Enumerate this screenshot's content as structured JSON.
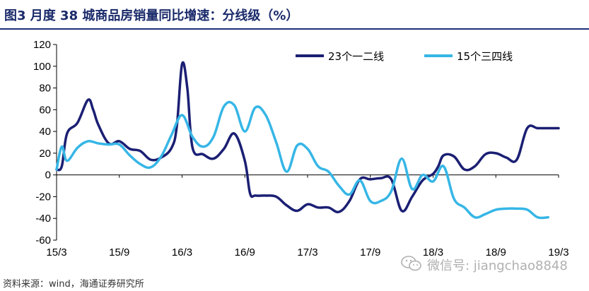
{
  "header": {
    "title": "图3  月度 38 城商品房销量同比增速：分线级（%）"
  },
  "footer": {
    "source": "资料来源：wind，海通证券研究所",
    "watermark": "微信号: jiangchao8848"
  },
  "colors": {
    "title": "#1a2a6a",
    "tier12": "#1b1f73",
    "tier34": "#36b6e6"
  },
  "chart_data": {
    "type": "line",
    "title": "",
    "xlabel": "",
    "ylabel": "",
    "ylim": [
      -60,
      120
    ],
    "yticks": [
      -60,
      -40,
      -20,
      0,
      20,
      40,
      60,
      80,
      100,
      120
    ],
    "xtick_labels": [
      "15/3",
      "15/9",
      "16/3",
      "16/9",
      "17/3",
      "17/9",
      "18/3",
      "18/9",
      "19/3"
    ],
    "xlim": [
      0,
      48
    ],
    "grid": false,
    "legend_position": "top-right",
    "series": [
      {
        "name": "23个一二线",
        "color": "#1b1f73",
        "x": [
          0,
          0.5,
          1,
          2,
          3,
          3.5,
          4,
          5,
          6,
          7,
          8,
          9,
          10,
          11,
          11.5,
          12,
          12.5,
          13,
          14,
          15,
          16,
          17,
          18,
          18.5,
          19,
          20,
          21,
          22,
          23,
          24,
          25,
          26,
          27,
          28,
          29,
          30,
          31,
          32,
          33,
          34,
          35,
          36,
          36.5,
          37,
          38,
          39,
          40,
          41,
          42,
          43,
          44,
          45,
          46,
          47,
          48
        ],
        "y": [
          5,
          8,
          38,
          48,
          69,
          60,
          46,
          29,
          31,
          24,
          22,
          14,
          16,
          25,
          45,
          102,
          80,
          25,
          19,
          15,
          24,
          38,
          13,
          -17,
          -19,
          -19,
          -20,
          -28,
          -33,
          -27,
          -30,
          -30,
          -34,
          -24,
          -4,
          -4,
          -3,
          -4,
          -33,
          -20,
          -5,
          1,
          8,
          18,
          17,
          5,
          8,
          19,
          20,
          16,
          14,
          43,
          43,
          43,
          43
        ]
      },
      {
        "name": "15个三四线",
        "color": "#36b6e6",
        "x": [
          0,
          0.5,
          1,
          2,
          3,
          4,
          5,
          6,
          7,
          8,
          9,
          10,
          11,
          12,
          13,
          14,
          15,
          16,
          17,
          18,
          19,
          20,
          21,
          22,
          23,
          24,
          25,
          26,
          27,
          28,
          29,
          30,
          31,
          32,
          33,
          34,
          35,
          36,
          37,
          38,
          39,
          40,
          41,
          42,
          43,
          44,
          45,
          46,
          47
        ],
        "y": [
          5,
          26,
          13,
          25,
          31,
          29,
          28,
          28,
          18,
          10,
          7,
          17,
          37,
          55,
          35,
          26,
          35,
          63,
          64,
          40,
          62,
          55,
          30,
          3,
          27,
          24,
          8,
          3,
          -10,
          -18,
          -5,
          -24,
          -24,
          -15,
          15,
          -13,
          0,
          -6,
          8,
          -22,
          -30,
          -39,
          -36,
          -32,
          -31,
          -31,
          -32,
          -39,
          -39
        ]
      }
    ]
  }
}
